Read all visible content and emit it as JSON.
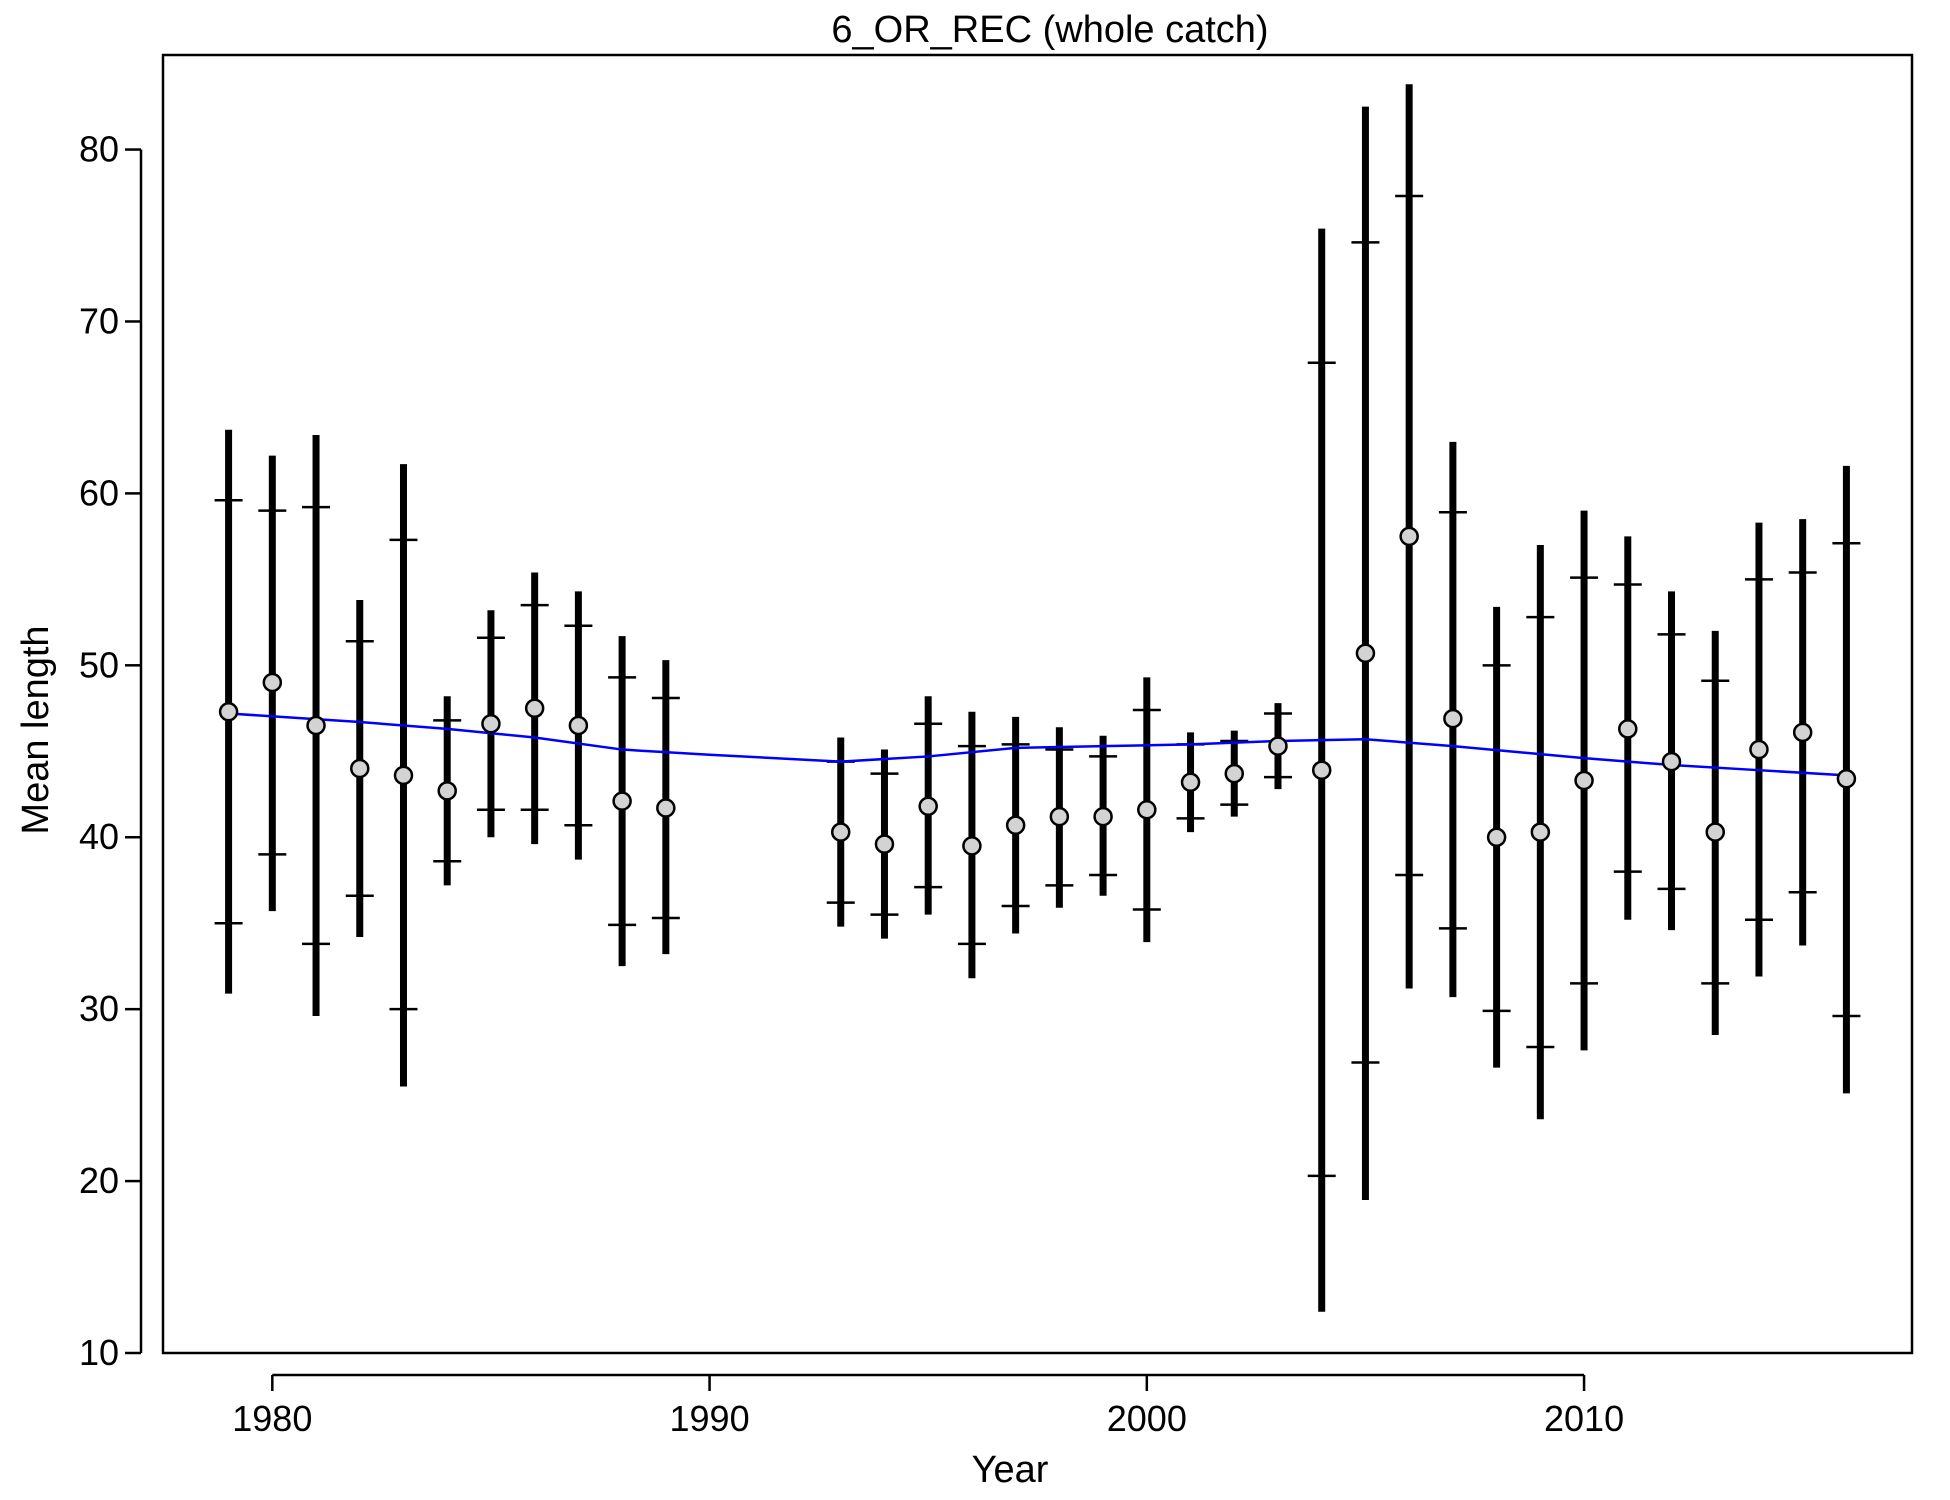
{
  "chart_data": {
    "type": "scatter",
    "title": "6_OR_REC (whole catch)",
    "xlabel": "Year",
    "ylabel": "Mean length",
    "xlim": [
      1977.5,
      2017.5
    ],
    "ylim": [
      10,
      85.5
    ],
    "xticks": [
      1980,
      1990,
      2000,
      2010
    ],
    "yticks": [
      10,
      20,
      30,
      40,
      50,
      60,
      70,
      80
    ],
    "grid": false,
    "colors": {
      "interval": "#000000",
      "point_fill": "#d3d3d3",
      "point_stroke": "#000000",
      "expected_line": "#0000ff"
    },
    "observed": [
      {
        "year": 1979,
        "mean": 47.3,
        "outer_lo": 30.9,
        "outer_hi": 63.7,
        "inner_lo": 35.0,
        "inner_hi": 59.6
      },
      {
        "year": 1980,
        "mean": 49.0,
        "outer_lo": 35.7,
        "outer_hi": 62.2,
        "inner_lo": 39.0,
        "inner_hi": 59.0
      },
      {
        "year": 1981,
        "mean": 46.5,
        "outer_lo": 29.6,
        "outer_hi": 63.4,
        "inner_lo": 33.8,
        "inner_hi": 59.2
      },
      {
        "year": 1982,
        "mean": 44.0,
        "outer_lo": 34.2,
        "outer_hi": 53.8,
        "inner_lo": 36.6,
        "inner_hi": 51.4
      },
      {
        "year": 1983,
        "mean": 43.6,
        "outer_lo": 25.5,
        "outer_hi": 61.7,
        "inner_lo": 30.0,
        "inner_hi": 57.3
      },
      {
        "year": 1984,
        "mean": 42.7,
        "outer_lo": 37.2,
        "outer_hi": 48.2,
        "inner_lo": 38.6,
        "inner_hi": 46.8
      },
      {
        "year": 1985,
        "mean": 46.6,
        "outer_lo": 40.0,
        "outer_hi": 53.2,
        "inner_lo": 41.6,
        "inner_hi": 51.6
      },
      {
        "year": 1986,
        "mean": 47.5,
        "outer_lo": 39.6,
        "outer_hi": 55.4,
        "inner_lo": 41.6,
        "inner_hi": 53.5
      },
      {
        "year": 1987,
        "mean": 46.5,
        "outer_lo": 38.7,
        "outer_hi": 54.3,
        "inner_lo": 40.7,
        "inner_hi": 52.3
      },
      {
        "year": 1988,
        "mean": 42.1,
        "outer_lo": 32.5,
        "outer_hi": 51.7,
        "inner_lo": 34.9,
        "inner_hi": 49.3
      },
      {
        "year": 1989,
        "mean": 41.7,
        "outer_lo": 33.2,
        "outer_hi": 50.3,
        "inner_lo": 35.3,
        "inner_hi": 48.1
      },
      {
        "year": 1993,
        "mean": 40.3,
        "outer_lo": 34.8,
        "outer_hi": 45.8,
        "inner_lo": 36.2,
        "inner_hi": 44.4
      },
      {
        "year": 1994,
        "mean": 39.6,
        "outer_lo": 34.1,
        "outer_hi": 45.1,
        "inner_lo": 35.5,
        "inner_hi": 43.7
      },
      {
        "year": 1995,
        "mean": 41.8,
        "outer_lo": 35.5,
        "outer_hi": 48.2,
        "inner_lo": 37.1,
        "inner_hi": 46.6
      },
      {
        "year": 1996,
        "mean": 39.5,
        "outer_lo": 31.8,
        "outer_hi": 47.3,
        "inner_lo": 33.8,
        "inner_hi": 45.3
      },
      {
        "year": 1997,
        "mean": 40.7,
        "outer_lo": 34.4,
        "outer_hi": 47.0,
        "inner_lo": 36.0,
        "inner_hi": 45.4
      },
      {
        "year": 1998,
        "mean": 41.2,
        "outer_lo": 35.9,
        "outer_hi": 46.4,
        "inner_lo": 37.2,
        "inner_hi": 45.1
      },
      {
        "year": 1999,
        "mean": 41.2,
        "outer_lo": 36.6,
        "outer_hi": 45.9,
        "inner_lo": 37.8,
        "inner_hi": 44.7
      },
      {
        "year": 2000,
        "mean": 41.6,
        "outer_lo": 33.9,
        "outer_hi": 49.3,
        "inner_lo": 35.8,
        "inner_hi": 47.4
      },
      {
        "year": 2001,
        "mean": 43.2,
        "outer_lo": 40.3,
        "outer_hi": 46.1,
        "inner_lo": 41.1,
        "inner_hi": 45.4
      },
      {
        "year": 2002,
        "mean": 43.7,
        "outer_lo": 41.2,
        "outer_hi": 46.2,
        "inner_lo": 41.9,
        "inner_hi": 45.6
      },
      {
        "year": 2003,
        "mean": 45.3,
        "outer_lo": 42.8,
        "outer_hi": 47.8,
        "inner_lo": 43.5,
        "inner_hi": 47.2
      },
      {
        "year": 2004,
        "mean": 43.9,
        "outer_lo": 12.4,
        "outer_hi": 75.4,
        "inner_lo": 20.3,
        "inner_hi": 67.6
      },
      {
        "year": 2005,
        "mean": 50.7,
        "outer_lo": 18.9,
        "outer_hi": 82.5,
        "inner_lo": 26.9,
        "inner_hi": 74.6
      },
      {
        "year": 2006,
        "mean": 57.5,
        "outer_lo": 31.2,
        "outer_hi": 83.8,
        "inner_lo": 37.8,
        "inner_hi": 77.3
      },
      {
        "year": 2007,
        "mean": 46.9,
        "outer_lo": 30.7,
        "outer_hi": 63.0,
        "inner_lo": 34.7,
        "inner_hi": 58.9
      },
      {
        "year": 2008,
        "mean": 40.0,
        "outer_lo": 26.6,
        "outer_hi": 53.4,
        "inner_lo": 29.9,
        "inner_hi": 50.0
      },
      {
        "year": 2009,
        "mean": 40.3,
        "outer_lo": 23.6,
        "outer_hi": 57.0,
        "inner_lo": 27.8,
        "inner_hi": 52.8
      },
      {
        "year": 2010,
        "mean": 43.3,
        "outer_lo": 27.6,
        "outer_hi": 59.0,
        "inner_lo": 31.5,
        "inner_hi": 55.1
      },
      {
        "year": 2011,
        "mean": 46.3,
        "outer_lo": 35.2,
        "outer_hi": 57.5,
        "inner_lo": 38.0,
        "inner_hi": 54.7
      },
      {
        "year": 2012,
        "mean": 44.4,
        "outer_lo": 34.6,
        "outer_hi": 54.3,
        "inner_lo": 37.0,
        "inner_hi": 51.8
      },
      {
        "year": 2013,
        "mean": 40.3,
        "outer_lo": 28.5,
        "outer_hi": 52.0,
        "inner_lo": 31.5,
        "inner_hi": 49.1
      },
      {
        "year": 2014,
        "mean": 45.1,
        "outer_lo": 31.9,
        "outer_hi": 58.3,
        "inner_lo": 35.2,
        "inner_hi": 55.0
      },
      {
        "year": 2015,
        "mean": 46.1,
        "outer_lo": 33.7,
        "outer_hi": 58.5,
        "inner_lo": 36.8,
        "inner_hi": 55.4
      },
      {
        "year": 2016,
        "mean": 43.4,
        "outer_lo": 25.1,
        "outer_hi": 61.6,
        "inner_lo": 29.6,
        "inner_hi": 57.1
      }
    ],
    "expected": [
      {
        "year": 1979,
        "value": 47.2
      },
      {
        "year": 1982,
        "value": 46.7
      },
      {
        "year": 1984,
        "value": 46.3
      },
      {
        "year": 1986,
        "value": 45.8
      },
      {
        "year": 1988,
        "value": 45.1
      },
      {
        "year": 1990,
        "value": 44.8
      },
      {
        "year": 1993,
        "value": 44.4
      },
      {
        "year": 1995,
        "value": 44.7
      },
      {
        "year": 1997,
        "value": 45.2
      },
      {
        "year": 1999,
        "value": 45.3
      },
      {
        "year": 2001,
        "value": 45.4
      },
      {
        "year": 2003,
        "value": 45.6
      },
      {
        "year": 2005,
        "value": 45.7
      },
      {
        "year": 2007,
        "value": 45.3
      },
      {
        "year": 2010,
        "value": 44.6
      },
      {
        "year": 2012,
        "value": 44.2
      },
      {
        "year": 2014,
        "value": 43.9
      },
      {
        "year": 2016,
        "value": 43.6
      }
    ]
  }
}
